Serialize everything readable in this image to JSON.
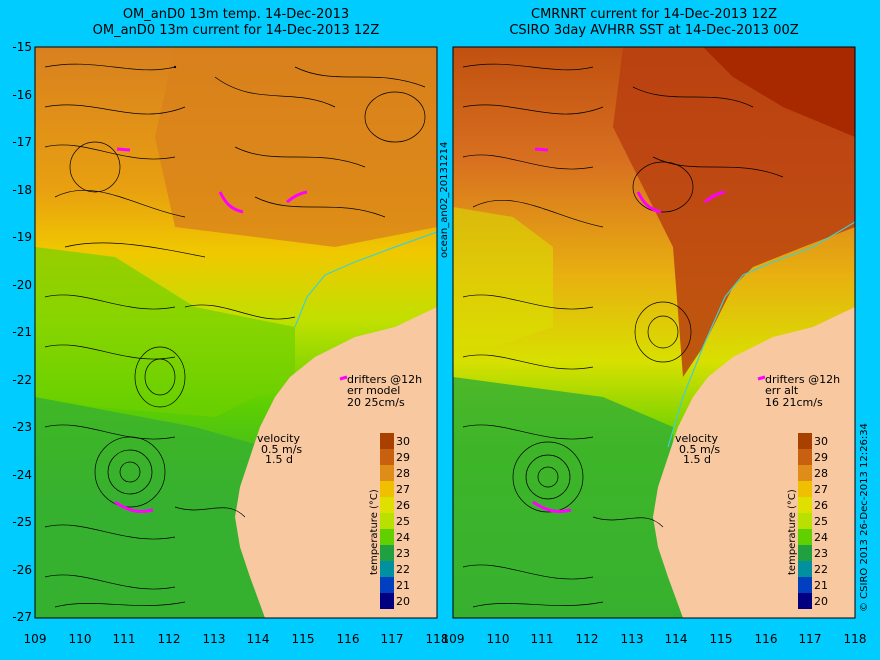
{
  "left_panel": {
    "title_line1": "OM_anD0 13m temp. 14-Dec-2013",
    "title_line2": "OM_anD0 13m current for 14-Dec-2013 12Z",
    "drifters_label": "drifters @12h",
    "err_label": "err model",
    "err_values": "20 25cm/s",
    "velocity_label": "velocity",
    "velocity_value": "0.5 m/s",
    "velocity_time": "1.5 d"
  },
  "right_panel": {
    "title_line1": "CMRNRT current for 14-Dec-2013 12Z",
    "title_line2": "CSIRO 3day AVHRR SST at 14-Dec-2013 00Z",
    "drifters_label": "drifters @12h",
    "err_label": "err alt",
    "err_values": "16 21cm/s",
    "velocity_label": "velocity",
    "velocity_value": "0.5 m/s",
    "velocity_time": "1.5 d"
  },
  "side_label": "ocean_an02_20131214",
  "copyright": "© CSIRO 2013   26-Dec-2013 12:26:34",
  "colorbar": {
    "label": "temperature (°C)",
    "ticks": [
      "30",
      "29",
      "28",
      "27",
      "26",
      "25",
      "24",
      "23",
      "22",
      "21",
      "20"
    ],
    "colors": [
      "#a84000",
      "#c86010",
      "#e08c18",
      "#f0c000",
      "#e0e000",
      "#b8e000",
      "#60d000",
      "#20a040",
      "#0090a0",
      "#0040c0",
      "#000080"
    ]
  },
  "axes": {
    "y_ticks": [
      "-15",
      "-16",
      "-17",
      "-18",
      "-19",
      "-20",
      "-21",
      "-22",
      "-23",
      "-24",
      "-25",
      "-26",
      "-27"
    ],
    "x_ticks": [
      "109",
      "110",
      "111",
      "112",
      "113",
      "114",
      "115",
      "116",
      "117",
      "118"
    ]
  },
  "colors": {
    "background": "#00ccff",
    "land": "#f8c8a0",
    "drifter": "#ff00ff"
  }
}
